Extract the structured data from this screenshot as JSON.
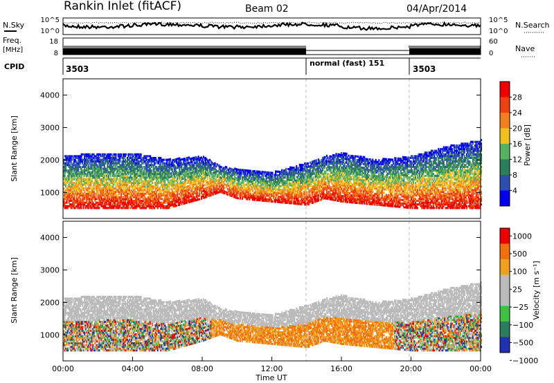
{
  "header": {
    "site": "Rankin Inlet (fitACF)",
    "beam": "Beam 02",
    "date": "04/Apr/2014"
  },
  "noise_panel": {
    "left_label": "N.Sky",
    "right_label": "N.Search",
    "left_ticks": [
      "10^5",
      "10^0"
    ],
    "right_ticks": [
      "10^5",
      "10^0"
    ]
  },
  "freq_panel": {
    "left_label_top": "Freq.",
    "left_label_unit": "[MHz]",
    "right_label": "Nave",
    "left_ticks": [
      "18",
      "8"
    ],
    "right_ticks": [
      "60",
      "0"
    ]
  },
  "cpid_panel": {
    "label": "CPID",
    "segments": [
      {
        "start_hour": 0,
        "end_hour": 14,
        "text": "3503"
      },
      {
        "start_hour": 14,
        "end_hour": 19.9,
        "text": "normal (fast) 151"
      },
      {
        "start_hour": 19.9,
        "end_hour": 24,
        "text": "3503"
      }
    ]
  },
  "colors": {
    "power_scale": [
      "#0000ee",
      "#2e4fb0",
      "#2e7d5a",
      "#58b060",
      "#f0c020",
      "#f08020",
      "#ee4010",
      "#ee0000"
    ],
    "velocity_scale": [
      "#2030b0",
      "#2e7d5a",
      "#40c040",
      "#bbbbbb",
      "#bbbbbb",
      "#f0a020",
      "#f07010",
      "#ee0000"
    ]
  },
  "chart_data": [
    {
      "type": "heatmap",
      "name": "power",
      "xlabel": "",
      "ylabel": "Slant Range [km]",
      "xlim": [
        0,
        24
      ],
      "ylim": [
        200,
        4500
      ],
      "y_ticks": [
        "1000",
        "2000",
        "3000",
        "4000"
      ],
      "colorbar_label": "Power [dB]",
      "colorbar_ticks": [
        "4",
        "8",
        "12",
        "16",
        "20",
        "24",
        "28"
      ],
      "scatter_band": {
        "hours": [
          0,
          2,
          4,
          6,
          8,
          9,
          10,
          12,
          14,
          15,
          16,
          18,
          20,
          22,
          24
        ],
        "low_km": [
          500,
          500,
          500,
          500,
          800,
          1000,
          800,
          700,
          600,
          800,
          700,
          600,
          500,
          500,
          500
        ],
        "high_km": [
          2100,
          2200,
          2200,
          2000,
          2100,
          1800,
          1700,
          1600,
          1900,
          2100,
          2200,
          2000,
          2100,
          2400,
          2600
        ]
      }
    },
    {
      "type": "heatmap",
      "name": "velocity",
      "xlabel": "Time UT",
      "ylabel": "Slant Range [km]",
      "xlim": [
        0,
        24
      ],
      "ylim": [
        200,
        4500
      ],
      "x_ticks": [
        "00:00",
        "04:00",
        "08:00",
        "12:00",
        "16:00",
        "20:00",
        "00:00"
      ],
      "y_ticks": [
        "1000",
        "2000",
        "3000",
        "4000"
      ],
      "colorbar_label": "Velocity [m s⁻¹]",
      "colorbar_ticks": [
        "1000",
        "500",
        "100",
        "25",
        "−25",
        "−100",
        "−500",
        "−1000"
      ]
    }
  ]
}
